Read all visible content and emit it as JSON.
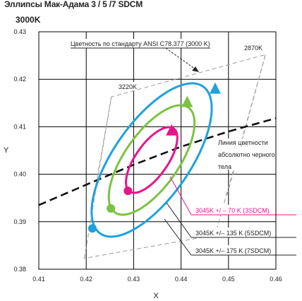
{
  "chart_data": {
    "type": "scatter",
    "title": "Эллипсы Мак-Адама 3 / 5 /7 SDCM",
    "subtitle": "3000K",
    "xlabel": "X",
    "ylabel": "Y",
    "xlim": [
      0.41,
      0.46
    ],
    "ylim": [
      0.38,
      0.43
    ],
    "x_ticks": [
      0.41,
      0.42,
      0.43,
      0.44,
      0.45,
      0.46
    ],
    "y_ticks": [
      0.38,
      0.39,
      0.4,
      0.41,
      0.42,
      0.43
    ],
    "x_tick_labels": [
      "0.41",
      "0.42",
      "0.43",
      "0.44",
      "0.45",
      "0.46"
    ],
    "y_tick_labels": [
      "0.38",
      "0.39",
      "0.40",
      "0.41",
      "0.42",
      "0.43"
    ],
    "grid": true,
    "center": {
      "x": 0.4338,
      "y": 0.403
    },
    "ellipses": [
      {
        "label": "3045K +/  –  70   K  (3SDCM)",
        "color": "#e8158a",
        "a": 0.0081,
        "b": 0.0034,
        "angle_deg": 55,
        "start_point": {
          "x": 0.4288,
          "y": 0.3965
        },
        "end_arrow": {
          "x": 0.438,
          "y": 0.4092
        }
      },
      {
        "label": "3045K    +/– 135  K  (5SDCM)",
        "color": "#7cc242",
        "a": 0.0135,
        "b": 0.0057,
        "angle_deg": 55,
        "start_point": {
          "x": 0.4252,
          "y": 0.3928
        },
        "end_arrow": {
          "x": 0.4413,
          "y": 0.4152
        }
      },
      {
        "label": "3045K    +/– 175  K  (7SDCM)",
        "color": "#1fa2dc",
        "a": 0.0189,
        "b": 0.008,
        "angle_deg": 55,
        "start_point": {
          "x": 0.4213,
          "y": 0.3886
        },
        "end_arrow": {
          "x": 0.4472,
          "y": 0.418
        }
      }
    ],
    "blackbody_locus": {
      "label": "Линия цветности абсолютно черного тела",
      "points": [
        [
          0.41,
          0.3935
        ],
        [
          0.42,
          0.3978
        ],
        [
          0.43,
          0.402
        ],
        [
          0.44,
          0.4058
        ],
        [
          0.45,
          0.409
        ],
        [
          0.46,
          0.4118
        ]
      ]
    },
    "quadrangle": {
      "points": [
        [
          0.4196,
          0.3823
        ],
        [
          0.4253,
          0.4163
        ],
        [
          0.4578,
          0.4252
        ],
        [
          0.4472,
          0.3872
        ]
      ]
    },
    "isotherms": [
      {
        "label": "3220K",
        "from": [
          0.4253,
          0.4163
        ],
        "to": [
          0.4211,
          0.3924
        ]
      },
      {
        "label": "2870K",
        "from": [
          0.4578,
          0.4252
        ],
        "to": [
          0.4496,
          0.3952
        ]
      }
    ],
    "annotations": {
      "ansi_label": "Цветность по стандарту ANSI C78.377 (3000 K)",
      "locus_label_line1": "Линия цветности",
      "locus_label_line2": "абсолютно черного",
      "locus_label_line3": "тела",
      "isotherm_left": "3220K",
      "isotherm_right": "2870K"
    }
  }
}
